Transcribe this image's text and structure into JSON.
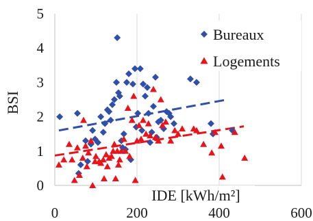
{
  "chart_data": {
    "type": "scatter",
    "title": "",
    "xlabel": "IDE [kWh/m²]",
    "ylabel": "BSI",
    "xlim": [
      0,
      600
    ],
    "ylim": [
      0,
      5
    ],
    "xticks": [
      "0",
      "200",
      "400",
      "600"
    ],
    "yticks": [
      "0",
      "1",
      "2",
      "3",
      "4",
      "5"
    ],
    "grid": "vertical",
    "legend": "top-right",
    "series": [
      {
        "name": "Bureaux",
        "marker": "diamond",
        "color": "#2f4fa8",
        "trend": {
          "x": [
            10,
            420
          ],
          "y": [
            1.6,
            2.5
          ]
        },
        "points": [
          [
            12,
            2.0
          ],
          [
            55,
            2.1
          ],
          [
            58,
            0.35
          ],
          [
            63,
            0.6
          ],
          [
            75,
            1.3
          ],
          [
            80,
            0.7
          ],
          [
            88,
            1.2
          ],
          [
            92,
            1.6
          ],
          [
            98,
            1.35
          ],
          [
            105,
            1.25
          ],
          [
            112,
            2.0
          ],
          [
            118,
            1.55
          ],
          [
            122,
            1.8
          ],
          [
            128,
            2.2
          ],
          [
            132,
            2.15
          ],
          [
            136,
            1.9
          ],
          [
            140,
            2.35
          ],
          [
            145,
            2.5
          ],
          [
            150,
            3.0
          ],
          [
            152,
            4.3
          ],
          [
            155,
            2.7
          ],
          [
            158,
            2.6
          ],
          [
            162,
            1.3
          ],
          [
            165,
            1.1
          ],
          [
            168,
            1.5
          ],
          [
            172,
            1.05
          ],
          [
            175,
            3.0
          ],
          [
            180,
            3.25
          ],
          [
            185,
            0.75
          ],
          [
            190,
            2.95
          ],
          [
            195,
            3.4
          ],
          [
            198,
            1.7
          ],
          [
            202,
            2.1
          ],
          [
            208,
            3.4
          ],
          [
            212,
            1.6
          ],
          [
            215,
            2.95
          ],
          [
            220,
            2.6
          ],
          [
            225,
            2.85
          ],
          [
            228,
            2.1
          ],
          [
            232,
            1.25
          ],
          [
            236,
            1.55
          ],
          [
            240,
            2.3
          ],
          [
            245,
            3.15
          ],
          [
            248,
            1.4
          ],
          [
            252,
            1.85
          ],
          [
            258,
            1.9
          ],
          [
            265,
            1.65
          ],
          [
            272,
            2.15
          ],
          [
            278,
            2.1
          ],
          [
            282,
            2.0
          ],
          [
            290,
            1.8
          ],
          [
            330,
            3.1
          ],
          [
            345,
            3.0
          ],
          [
            380,
            1.8
          ],
          [
            385,
            1.5
          ],
          [
            432,
            1.6
          ]
        ]
      },
      {
        "name": "Logements",
        "marker": "triangle",
        "color": "#e8141b",
        "trend": {
          "x": [
            0,
            460
          ],
          "y": [
            0.87,
            1.72
          ]
        },
        "points": [
          [
            10,
            0.6
          ],
          [
            22,
            0.75
          ],
          [
            35,
            1.2
          ],
          [
            42,
            0.75
          ],
          [
            48,
            0.15
          ],
          [
            55,
            1.1
          ],
          [
            60,
            0.3
          ],
          [
            68,
            0.8
          ],
          [
            70,
            1.9
          ],
          [
            75,
            1.15
          ],
          [
            78,
            0.55
          ],
          [
            82,
            0.95
          ],
          [
            88,
            1.3
          ],
          [
            92,
            0.0
          ],
          [
            98,
            0.7
          ],
          [
            100,
            0.85
          ],
          [
            108,
            0.7
          ],
          [
            112,
            0.65
          ],
          [
            118,
            0.75
          ],
          [
            120,
            0.2
          ],
          [
            125,
            0.9
          ],
          [
            128,
            0.55
          ],
          [
            132,
            0.8
          ],
          [
            138,
            0.85
          ],
          [
            142,
            1.0
          ],
          [
            145,
            1.2
          ],
          [
            148,
            0.2
          ],
          [
            152,
            1.0
          ],
          [
            155,
            0.6
          ],
          [
            158,
            0.75
          ],
          [
            162,
            1.0
          ],
          [
            168,
            1.35
          ],
          [
            172,
            1.0
          ],
          [
            178,
            2.25
          ],
          [
            182,
            0.85
          ],
          [
            188,
            1.9
          ],
          [
            192,
            2.6
          ],
          [
            196,
            0.15
          ],
          [
            200,
            1.3
          ],
          [
            205,
            1.75
          ],
          [
            210,
            1.35
          ],
          [
            215,
            1.9
          ],
          [
            222,
            1.5
          ],
          [
            228,
            1.8
          ],
          [
            232,
            1.45
          ],
          [
            240,
            2.8
          ],
          [
            245,
            1.4
          ],
          [
            252,
            1.3
          ],
          [
            258,
            2.5
          ],
          [
            262,
            1.75
          ],
          [
            270,
            1.85
          ],
          [
            282,
            1.3
          ],
          [
            292,
            1.6
          ],
          [
            300,
            1.5
          ],
          [
            310,
            1.65
          ],
          [
            338,
            1.65
          ],
          [
            345,
            1.6
          ],
          [
            362,
            1.2
          ],
          [
            382,
            0.95
          ],
          [
            390,
            1.55
          ],
          [
            405,
            1.15
          ],
          [
            408,
            0.25
          ],
          [
            438,
            1.55
          ],
          [
            462,
            0.8
          ]
        ]
      }
    ]
  }
}
